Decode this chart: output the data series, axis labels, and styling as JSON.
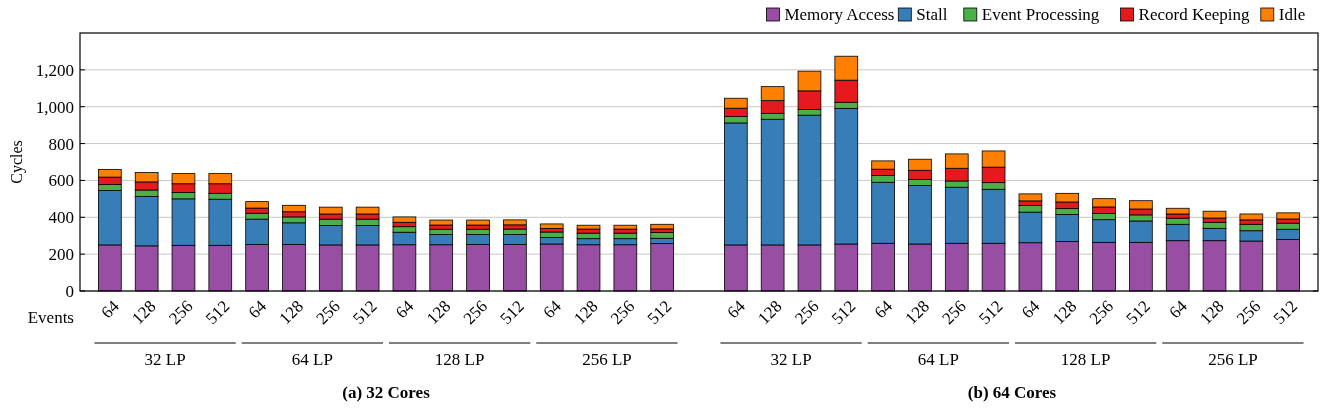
{
  "chart_data": {
    "type": "bar",
    "stacked": true,
    "ylabel": "Cycles",
    "xlabel": "Events",
    "categories": [
      "64",
      "128",
      "256",
      "512",
      "64",
      "128",
      "256",
      "512",
      "64",
      "128",
      "256",
      "512",
      "64",
      "128",
      "256",
      "512",
      null,
      "64",
      "128",
      "256",
      "512",
      "64",
      "128",
      "256",
      "512",
      "64",
      "128",
      "256",
      "512",
      "64",
      "128",
      "256",
      "512"
    ],
    "series": [
      {
        "name": "Memory Access",
        "color": "#984ea3",
        "values": [
          250,
          245,
          248,
          248,
          252,
          252,
          250,
          250,
          251,
          251,
          252,
          252,
          255,
          251,
          251,
          257,
          null,
          250,
          250,
          250,
          255,
          259,
          255,
          259,
          259,
          262,
          268,
          264,
          264,
          273,
          273,
          271,
          279
        ]
      },
      {
        "name": "Stall",
        "color": "#377eb8",
        "values": [
          295,
          268,
          252,
          250,
          138,
          118,
          105,
          105,
          68,
          55,
          54,
          55,
          35,
          33,
          33,
          29,
          null,
          662,
          682,
          704,
          736,
          331,
          317,
          304,
          293,
          166,
          147,
          123,
          116,
          89,
          67,
          56,
          56
        ]
      },
      {
        "name": "Event Processing",
        "color": "#4daf4a",
        "values": [
          33,
          35,
          35,
          32,
          32,
          32,
          35,
          35,
          30,
          29,
          29,
          29,
          30,
          30,
          30,
          31,
          null,
          35,
          32,
          31,
          33,
          37,
          33,
          34,
          36,
          36,
          32,
          34,
          33,
          33,
          33,
          35,
          33
        ]
      },
      {
        "name": "Record Keeping",
        "color": "#e41a1c",
        "values": [
          40,
          44,
          47,
          52,
          28,
          28,
          28,
          28,
          24,
          23,
          23,
          23,
          19,
          22,
          22,
          20,
          null,
          45,
          69,
          101,
          120,
          34,
          50,
          69,
          84,
          25,
          36,
          35,
          32,
          23,
          23,
          24,
          23
        ]
      },
      {
        "name": "Idle",
        "color": "#ff7f00",
        "values": [
          42,
          51,
          55,
          55,
          35,
          35,
          37,
          37,
          29,
          27,
          27,
          27,
          25,
          21,
          21,
          25,
          null,
          54,
          76,
          107,
          130,
          45,
          60,
          78,
          88,
          38,
          47,
          45,
          45,
          31,
          37,
          32,
          33
        ]
      }
    ],
    "ylim": [
      0,
      1400
    ],
    "yticks": [
      0,
      200,
      400,
      600,
      800,
      {
        "value": 1000,
        "label": "1,000"
      },
      {
        "value": 1200,
        "label": "1,200"
      }
    ],
    "grid": "y",
    "legend": "top right",
    "annotations": [
      "32 LP",
      "64 LP",
      "128 LP",
      "256 LP",
      "32 LP",
      "64 LP",
      "128 LP",
      "256 LP",
      "(a) 32 Cores",
      "(b) 64 Cores"
    ]
  }
}
